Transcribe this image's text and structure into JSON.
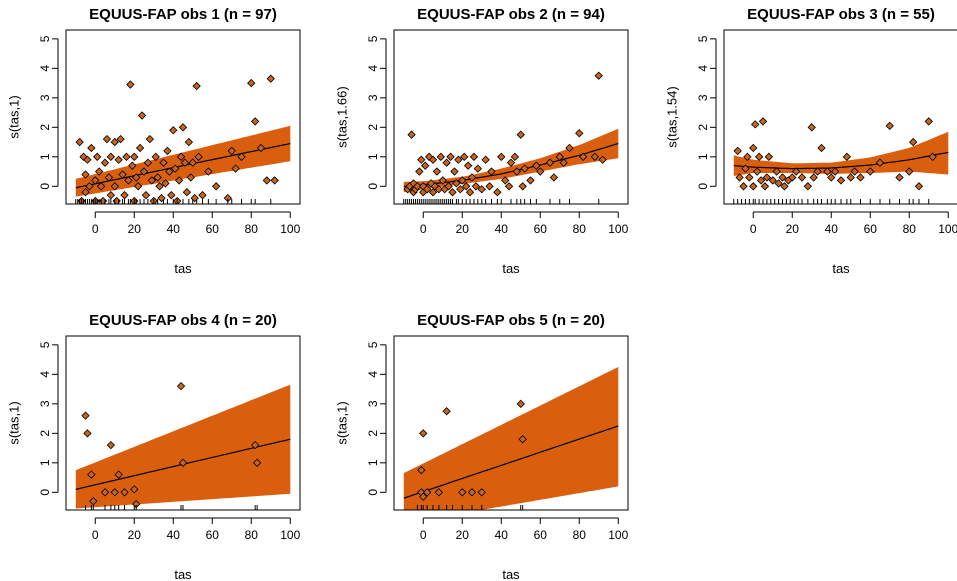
{
  "figure": {
    "band_color": "#D95F0E",
    "point_color": "#C8641E",
    "line_color": "#000000"
  },
  "chart_data": [
    {
      "type": "scatter",
      "title": "EQUUS-FAP obs 1 (n = 97)",
      "xlabel": "tas",
      "ylabel": "s(tas,1)",
      "xlim": [
        -15,
        105
      ],
      "ylim": [
        -0.6,
        5.3
      ],
      "xticks": [
        0,
        20,
        40,
        60,
        80,
        100
      ],
      "yticks": [
        0,
        1,
        2,
        3,
        4,
        5
      ],
      "fit": {
        "x": [
          -10,
          100
        ],
        "y": [
          -0.05,
          1.45
        ]
      },
      "band": {
        "x": [
          -10,
          100
        ],
        "upper": [
          0.25,
          2.05
        ],
        "lower": [
          -0.35,
          0.85
        ]
      },
      "points": [
        [
          -8,
          1.5
        ],
        [
          -6,
          1.0
        ],
        [
          -5,
          0.4
        ],
        [
          -5,
          -0.2
        ],
        [
          -7,
          -0.5
        ],
        [
          -4,
          0.9
        ],
        [
          -3,
          0.0
        ],
        [
          -2,
          1.3
        ],
        [
          0,
          0.2
        ],
        [
          0,
          -0.5
        ],
        [
          1,
          1.0
        ],
        [
          2,
          0.5
        ],
        [
          3,
          0.0
        ],
        [
          4,
          -0.5
        ],
        [
          5,
          0.8
        ],
        [
          6,
          1.6
        ],
        [
          7,
          0.3
        ],
        [
          8,
          -0.3
        ],
        [
          8,
          1.0
        ],
        [
          10,
          1.5
        ],
        [
          10,
          0.0
        ],
        [
          11,
          -0.5
        ],
        [
          12,
          0.9
        ],
        [
          13,
          1.6
        ],
        [
          14,
          0.4
        ],
        [
          15,
          -0.3
        ],
        [
          16,
          1.0
        ],
        [
          17,
          0.2
        ],
        [
          18,
          3.45
        ],
        [
          19,
          0.7
        ],
        [
          20,
          -0.5
        ],
        [
          20,
          1.0
        ],
        [
          21,
          0.3
        ],
        [
          22,
          0.0
        ],
        [
          23,
          1.3
        ],
        [
          24,
          2.4
        ],
        [
          25,
          0.5
        ],
        [
          26,
          -0.3
        ],
        [
          27,
          0.8
        ],
        [
          28,
          1.6
        ],
        [
          29,
          0.2
        ],
        [
          30,
          -0.5
        ],
        [
          31,
          1.0
        ],
        [
          32,
          0.3
        ],
        [
          33,
          0.0
        ],
        [
          34,
          -0.4
        ],
        [
          35,
          0.8
        ],
        [
          36,
          0.1
        ],
        [
          37,
          1.2
        ],
        [
          38,
          0.5
        ],
        [
          39,
          -0.3
        ],
        [
          40,
          1.9
        ],
        [
          41,
          0.6
        ],
        [
          42,
          -0.5
        ],
        [
          43,
          0.2
        ],
        [
          44,
          1.0
        ],
        [
          45,
          2.0
        ],
        [
          46,
          0.8
        ],
        [
          47,
          -0.2
        ],
        [
          48,
          1.5
        ],
        [
          49,
          0.3
        ],
        [
          50,
          0.8
        ],
        [
          51,
          -0.4
        ],
        [
          52,
          3.4
        ],
        [
          53,
          1.0
        ],
        [
          55,
          -0.3
        ],
        [
          58,
          0.5
        ],
        [
          62,
          0.0
        ],
        [
          68,
          -0.4
        ],
        [
          70,
          1.2
        ],
        [
          72,
          0.6
        ],
        [
          75,
          1.0
        ],
        [
          80,
          3.5
        ],
        [
          82,
          2.2
        ],
        [
          85,
          1.3
        ],
        [
          88,
          0.2
        ],
        [
          90,
          3.65
        ],
        [
          92,
          0.2
        ]
      ],
      "rug": [
        -10,
        -9,
        -8,
        -7,
        -6,
        -5,
        -4,
        -3,
        -2,
        -1,
        0,
        1,
        2,
        3,
        5,
        7,
        8,
        10,
        12,
        14,
        15,
        17,
        18,
        20,
        21,
        23,
        25,
        27,
        30,
        32,
        35,
        37,
        40,
        42,
        45,
        48,
        50,
        52,
        55,
        58,
        62,
        68,
        70,
        75,
        80,
        82,
        90
      ]
    },
    {
      "type": "scatter",
      "title": "EQUUS-FAP obs 2 (n = 94)",
      "xlabel": "tas",
      "ylabel": "s(tas,1.66)",
      "xlim": [
        -15,
        105
      ],
      "ylim": [
        -0.6,
        5.3
      ],
      "xticks": [
        0,
        20,
        40,
        60,
        80,
        100
      ],
      "yticks": [
        0,
        1,
        2,
        3,
        4,
        5
      ],
      "fit": {
        "x": [
          -10,
          0,
          20,
          40,
          60,
          80,
          100
        ],
        "y": [
          0.0,
          0.05,
          0.2,
          0.42,
          0.72,
          1.05,
          1.45
        ]
      },
      "band": {
        "x": [
          -10,
          0,
          20,
          40,
          60,
          80,
          100
        ],
        "upper": [
          0.15,
          0.17,
          0.32,
          0.6,
          0.95,
          1.4,
          1.95
        ],
        "lower": [
          -0.2,
          -0.1,
          0.08,
          0.25,
          0.5,
          0.75,
          0.95
        ]
      },
      "points": [
        [
          -8,
          -0.1
        ],
        [
          -7,
          0.0
        ],
        [
          -6,
          1.75
        ],
        [
          -5,
          -0.2
        ],
        [
          -5,
          0.1
        ],
        [
          -4,
          -0.1
        ],
        [
          -3,
          0.0
        ],
        [
          -2,
          0.5
        ],
        [
          -1,
          0.9
        ],
        [
          0,
          -0.2
        ],
        [
          0,
          0.0
        ],
        [
          1,
          0.7
        ],
        [
          2,
          -0.1
        ],
        [
          3,
          1.0
        ],
        [
          4,
          0.1
        ],
        [
          5,
          -0.2
        ],
        [
          5,
          0.9
        ],
        [
          6,
          0.0
        ],
        [
          7,
          0.5
        ],
        [
          8,
          -0.1
        ],
        [
          9,
          1.0
        ],
        [
          10,
          0.2
        ],
        [
          11,
          -0.1
        ],
        [
          12,
          0.8
        ],
        [
          13,
          0.0
        ],
        [
          14,
          1.0
        ],
        [
          15,
          -0.2
        ],
        [
          16,
          0.5
        ],
        [
          17,
          0.1
        ],
        [
          18,
          0.9
        ],
        [
          19,
          -0.1
        ],
        [
          20,
          0.2
        ],
        [
          21,
          1.0
        ],
        [
          22,
          0.0
        ],
        [
          23,
          0.7
        ],
        [
          24,
          -0.2
        ],
        [
          25,
          0.3
        ],
        [
          26,
          1.0
        ],
        [
          27,
          0.0
        ],
        [
          28,
          0.6
        ],
        [
          30,
          -0.1
        ],
        [
          32,
          0.9
        ],
        [
          34,
          0.0
        ],
        [
          35,
          0.5
        ],
        [
          38,
          -0.2
        ],
        [
          40,
          1.0
        ],
        [
          42,
          0.2
        ],
        [
          44,
          0.0
        ],
        [
          45,
          0.8
        ],
        [
          47,
          1.0
        ],
        [
          48,
          0.5
        ],
        [
          50,
          1.75
        ],
        [
          51,
          0.0
        ],
        [
          52,
          0.6
        ],
        [
          55,
          0.2
        ],
        [
          58,
          0.7
        ],
        [
          60,
          0.5
        ],
        [
          65,
          0.8
        ],
        [
          67,
          0.3
        ],
        [
          70,
          1.0
        ],
        [
          72,
          0.8
        ],
        [
          75,
          1.3
        ],
        [
          80,
          1.8
        ],
        [
          82,
          1.0
        ],
        [
          88,
          1.0
        ],
        [
          90,
          3.75
        ],
        [
          92,
          0.9
        ]
      ],
      "rug": [
        -10,
        -9,
        -8,
        -7,
        -6,
        -5,
        -4,
        -3,
        -2,
        -1,
        0,
        1,
        2,
        3,
        4,
        5,
        6,
        7,
        8,
        9,
        10,
        11,
        12,
        13,
        14,
        15,
        17,
        18,
        20,
        22,
        24,
        26,
        28,
        30,
        32,
        35,
        38,
        40,
        45,
        48,
        50,
        52,
        55,
        58,
        65,
        70,
        75,
        90
      ]
    },
    {
      "type": "scatter",
      "title": "EQUUS-FAP obs 3 (n = 55)",
      "xlabel": "tas",
      "ylabel": "s(tas,1.54)",
      "xlim": [
        -15,
        105
      ],
      "ylim": [
        -0.6,
        5.3
      ],
      "xticks": [
        0,
        20,
        40,
        60,
        80,
        100
      ],
      "yticks": [
        0,
        1,
        2,
        3,
        4,
        5
      ],
      "fit": {
        "x": [
          -10,
          0,
          20,
          40,
          60,
          80,
          100
        ],
        "y": [
          0.7,
          0.65,
          0.6,
          0.62,
          0.72,
          0.9,
          1.15
        ]
      },
      "band": {
        "x": [
          -10,
          0,
          20,
          40,
          60,
          80,
          100
        ],
        "upper": [
          1.05,
          0.9,
          0.78,
          0.8,
          0.98,
          1.3,
          1.85
        ],
        "lower": [
          0.35,
          0.45,
          0.45,
          0.42,
          0.45,
          0.5,
          0.4
        ]
      },
      "points": [
        [
          -8,
          1.2
        ],
        [
          -7,
          0.3
        ],
        [
          -5,
          0.0
        ],
        [
          -4,
          0.6
        ],
        [
          -3,
          1.0
        ],
        [
          -2,
          0.3
        ],
        [
          0,
          1.3
        ],
        [
          0,
          0.0
        ],
        [
          1,
          2.1
        ],
        [
          2,
          0.5
        ],
        [
          3,
          1.0
        ],
        [
          4,
          0.2
        ],
        [
          5,
          2.2
        ],
        [
          6,
          0.0
        ],
        [
          7,
          0.3
        ],
        [
          8,
          1.0
        ],
        [
          10,
          0.2
        ],
        [
          12,
          0.5
        ],
        [
          13,
          0.1
        ],
        [
          15,
          0.3
        ],
        [
          16,
          0.0
        ],
        [
          18,
          0.2
        ],
        [
          20,
          0.3
        ],
        [
          22,
          0.5
        ],
        [
          25,
          0.3
        ],
        [
          28,
          0.0
        ],
        [
          30,
          2.0
        ],
        [
          31,
          0.3
        ],
        [
          33,
          0.5
        ],
        [
          35,
          1.3
        ],
        [
          38,
          0.5
        ],
        [
          40,
          0.3
        ],
        [
          42,
          0.5
        ],
        [
          45,
          0.2
        ],
        [
          48,
          1.0
        ],
        [
          50,
          0.3
        ],
        [
          52,
          0.5
        ],
        [
          55,
          0.3
        ],
        [
          60,
          0.5
        ],
        [
          65,
          0.8
        ],
        [
          70,
          2.05
        ],
        [
          75,
          0.3
        ],
        [
          80,
          0.5
        ],
        [
          82,
          1.5
        ],
        [
          85,
          0.0
        ],
        [
          90,
          2.2
        ],
        [
          92,
          1.0
        ]
      ],
      "rug": [
        -10,
        -8,
        -6,
        -4,
        -2,
        0,
        1,
        3,
        5,
        7,
        9,
        11,
        13,
        15,
        17,
        19,
        21,
        23,
        25,
        28,
        31,
        33,
        35,
        38,
        40,
        42,
        45,
        48,
        50,
        55,
        60,
        65,
        70,
        75,
        80,
        82,
        85,
        90
      ]
    },
    {
      "type": "scatter",
      "title": "EQUUS-FAP obs 4 (n = 20)",
      "xlabel": "tas",
      "ylabel": "s(tas,1)",
      "xlim": [
        -15,
        105
      ],
      "ylim": [
        -0.6,
        5.3
      ],
      "xticks": [
        0,
        20,
        40,
        60,
        80,
        100
      ],
      "yticks": [
        0,
        1,
        2,
        3,
        4,
        5
      ],
      "fit": {
        "x": [
          -10,
          100
        ],
        "y": [
          0.1,
          1.8
        ]
      },
      "band": {
        "x": [
          -10,
          100
        ],
        "upper": [
          0.75,
          3.65
        ],
        "lower": [
          -0.55,
          -0.05
        ]
      },
      "points": [
        [
          -5,
          2.6
        ],
        [
          -4,
          2.0
        ],
        [
          -2,
          0.6
        ],
        [
          -1,
          -0.3
        ],
        [
          5,
          0.0
        ],
        [
          8,
          1.6
        ],
        [
          10,
          0.0
        ],
        [
          12,
          0.6
        ],
        [
          15,
          0.0
        ],
        [
          20,
          0.1
        ],
        [
          21,
          -0.4
        ],
        [
          44,
          3.6
        ],
        [
          45,
          1.0
        ],
        [
          82,
          1.6
        ],
        [
          83,
          1.0
        ]
      ],
      "rug": [
        -5,
        -2,
        -1,
        5,
        8,
        10,
        12,
        15,
        20,
        21,
        44,
        45,
        82,
        83
      ]
    },
    {
      "type": "scatter",
      "title": "EQUUS-FAP obs 5 (n = 20)",
      "xlabel": "tas",
      "ylabel": "s(tas,1)",
      "xlim": [
        -15,
        105
      ],
      "ylim": [
        -0.6,
        5.3
      ],
      "xticks": [
        0,
        20,
        40,
        60,
        80,
        100
      ],
      "yticks": [
        0,
        1,
        2,
        3,
        4,
        5
      ],
      "fit": {
        "x": [
          -10,
          100
        ],
        "y": [
          -0.2,
          2.25
        ]
      },
      "band": {
        "x": [
          -10,
          100
        ],
        "upper": [
          0.65,
          4.25
        ],
        "lower": [
          -1.05,
          0.2
        ]
      },
      "points": [
        [
          -1,
          0.0
        ],
        [
          -1,
          0.75
        ],
        [
          0,
          2.0
        ],
        [
          0,
          -0.15
        ],
        [
          2,
          0.0
        ],
        [
          8,
          0.0
        ],
        [
          12,
          2.75
        ],
        [
          20,
          0.0
        ],
        [
          25,
          0.0
        ],
        [
          30,
          0.0
        ],
        [
          50,
          3.0
        ],
        [
          51,
          1.8
        ]
      ],
      "rug": [
        -3,
        -1,
        0,
        2,
        5,
        8,
        12,
        15,
        20,
        25,
        30,
        50,
        51
      ]
    }
  ]
}
